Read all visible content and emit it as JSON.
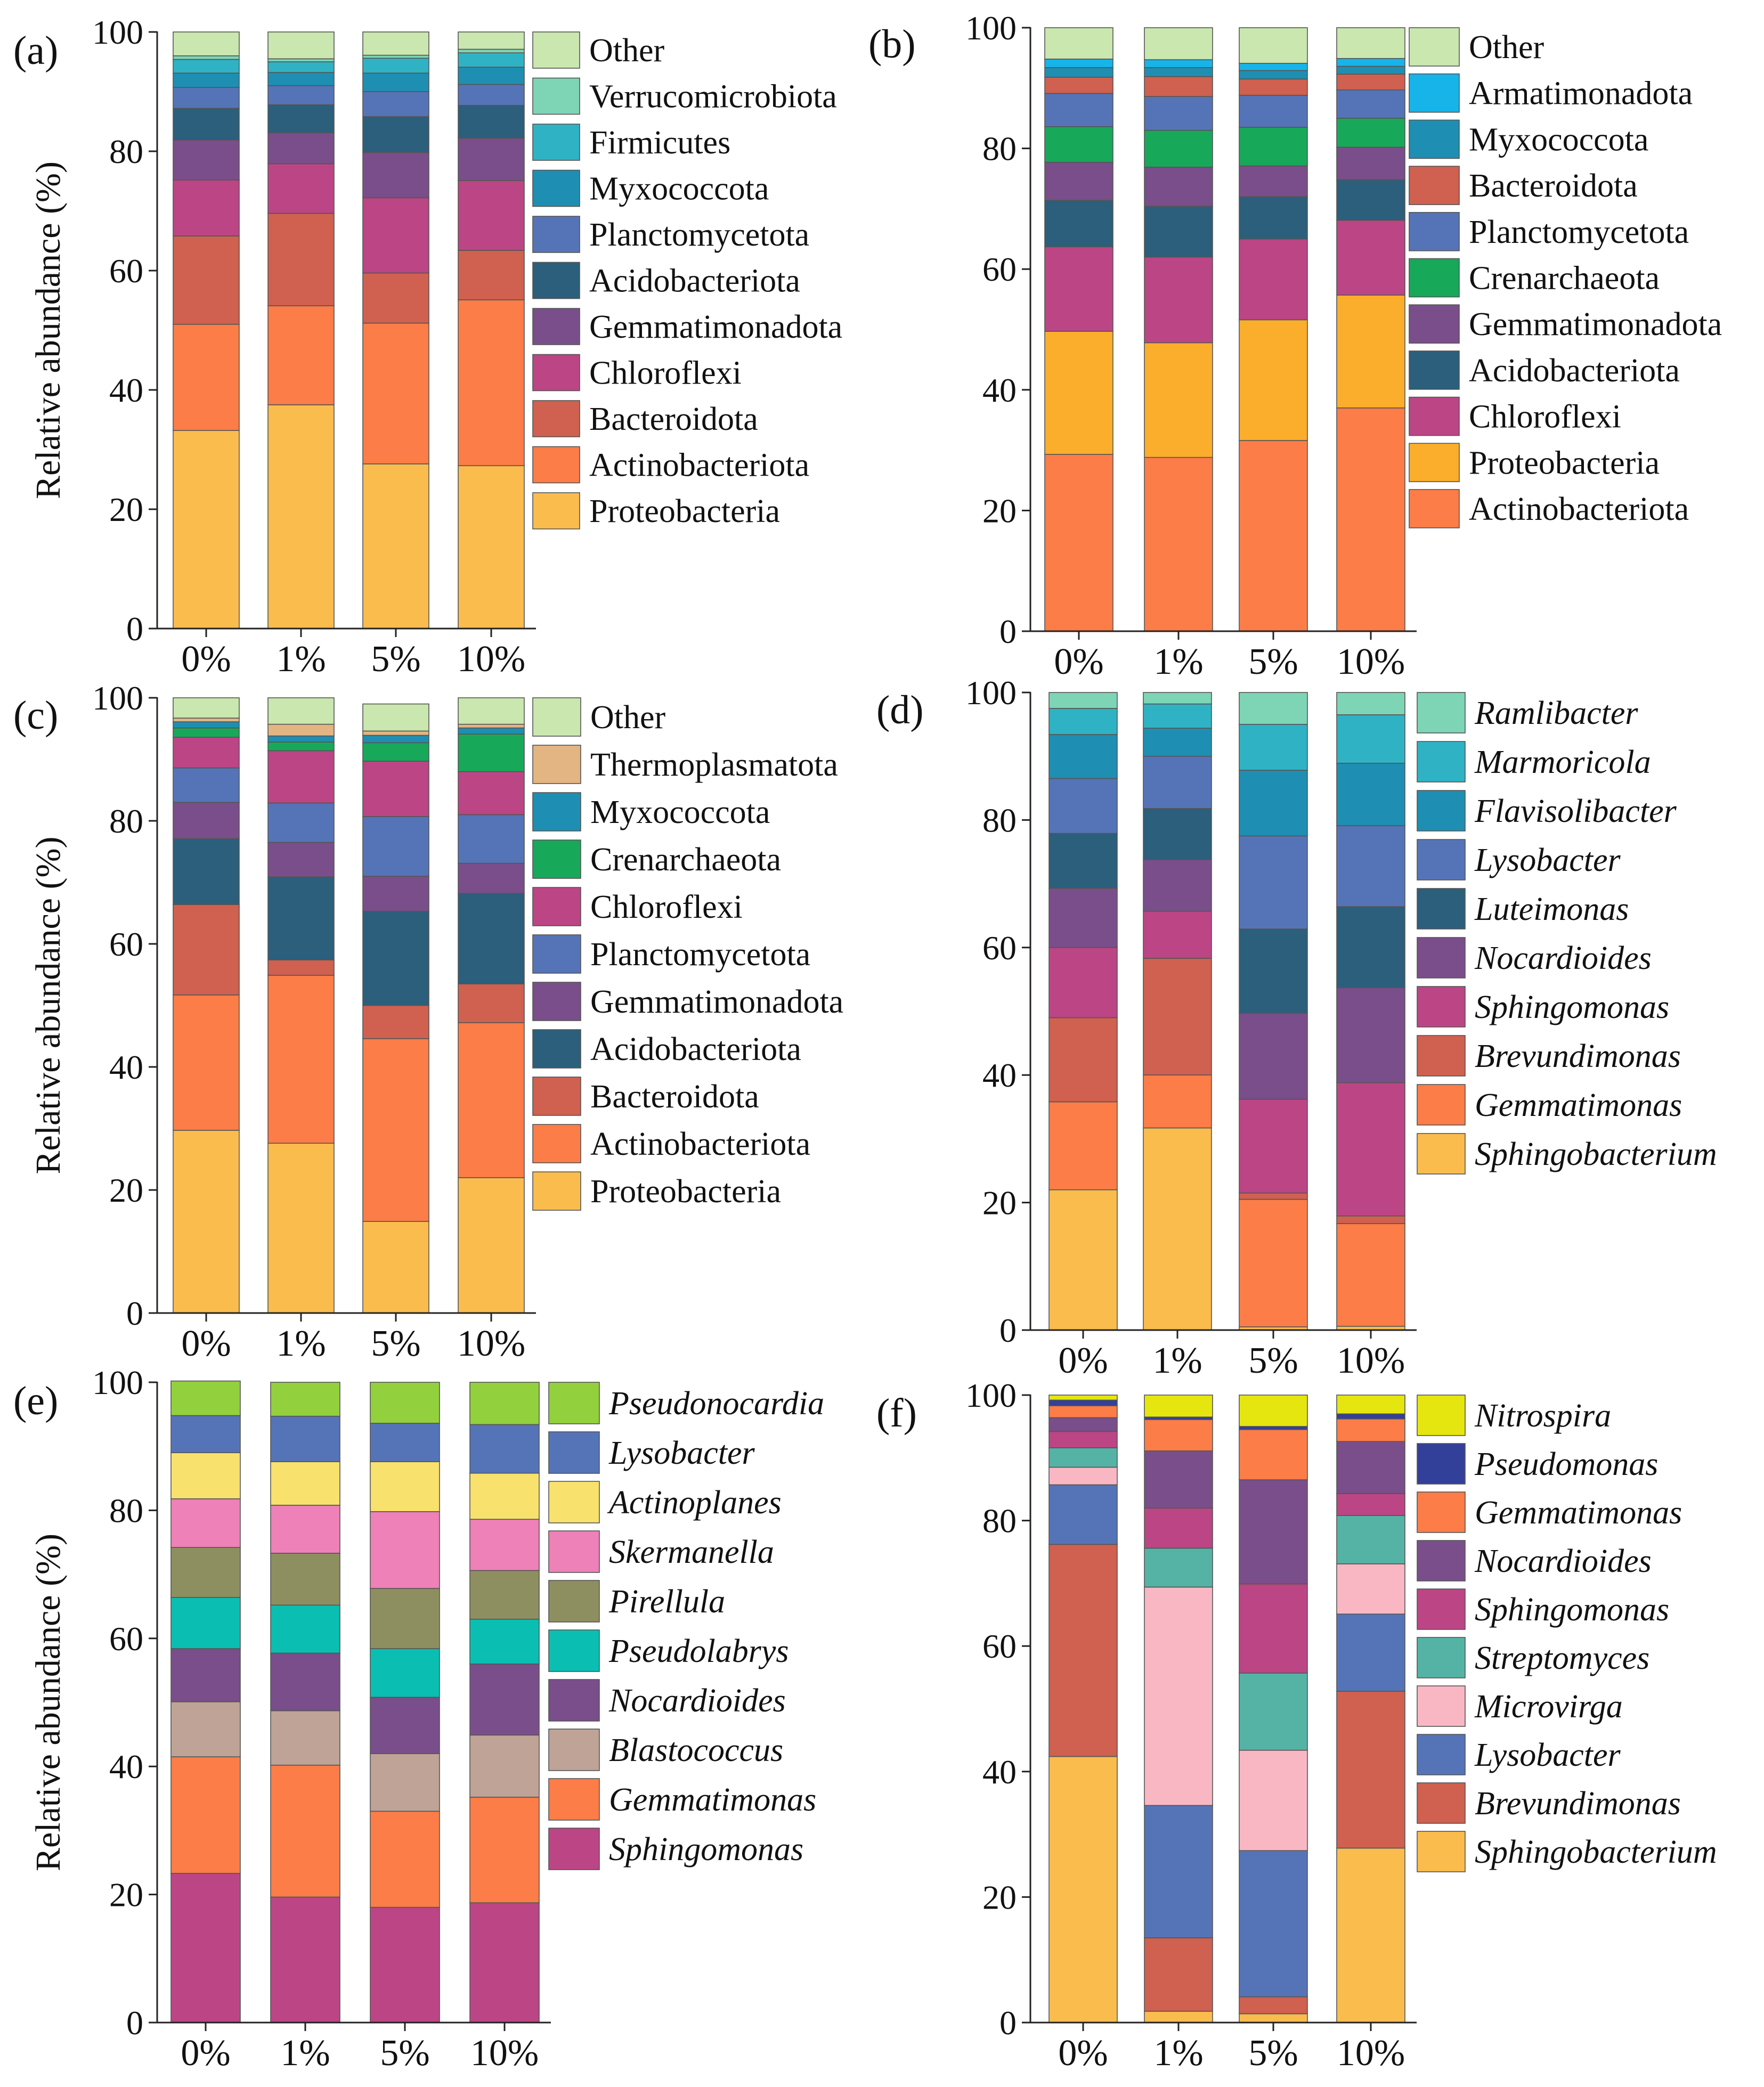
{
  "figure": {
    "ylabel": "Relative  abundance (%)"
  },
  "chart_data": [
    {
      "panel": "(a)",
      "type": "stacked-bar",
      "categories": [
        "0%",
        "1%",
        "5%",
        "10%"
      ],
      "ylim": [
        0,
        100
      ],
      "yticks": [
        0,
        20,
        40,
        60,
        80,
        100
      ],
      "ylabel": "Relative  abundance (%)",
      "series": [
        {
          "name": "Proteobacteria",
          "italic": false,
          "color": "#FBBC4E",
          "values": [
            33.2,
            37.5,
            27.6,
            27.3
          ]
        },
        {
          "name": "Actinobacteriota",
          "italic": false,
          "color": "#FC7D47",
          "values": [
            17.8,
            16.6,
            23.6,
            27.8
          ]
        },
        {
          "name": "Bacteroidota",
          "italic": false,
          "color": "#D0604F",
          "values": [
            14.8,
            15.5,
            8.4,
            8.3
          ]
        },
        {
          "name": "Chloroflexi",
          "italic": false,
          "color": "#BC4585",
          "values": [
            9.4,
            8.3,
            12.6,
            11.7
          ]
        },
        {
          "name": "Gemmatimonadota",
          "italic": false,
          "color": "#7A4E8A",
          "values": [
            6.7,
            5.2,
            7.6,
            7.1
          ]
        },
        {
          "name": "Acidobacteriota",
          "italic": false,
          "color": "#2B5F7C",
          "values": [
            5.3,
            4.7,
            6.0,
            5.5
          ]
        },
        {
          "name": "Planctomycetota",
          "italic": false,
          "color": "#5574B8",
          "values": [
            3.5,
            3.2,
            4.2,
            3.5
          ]
        },
        {
          "name": "Myxococcota",
          "italic": false,
          "color": "#1E8FB2",
          "values": [
            2.4,
            2.2,
            3.1,
            2.9
          ]
        },
        {
          "name": "Firmicutes",
          "italic": false,
          "color": "#2FB2C4",
          "values": [
            2.3,
            1.8,
            2.5,
            2.4
          ]
        },
        {
          "name": "Verrucomicrobiota",
          "italic": false,
          "color": "#7DD5B5",
          "values": [
            0.6,
            0.5,
            0.5,
            0.6
          ]
        },
        {
          "name": "Other",
          "italic": false,
          "color": "#C9E7AE",
          "values": [
            4.0,
            4.5,
            3.9,
            2.9
          ]
        }
      ]
    },
    {
      "panel": "(b)",
      "type": "stacked-bar",
      "categories": [
        "0%",
        "1%",
        "5%",
        "10%"
      ],
      "ylim": [
        0,
        100
      ],
      "yticks": [
        0,
        20,
        40,
        60,
        80,
        100
      ],
      "series": [
        {
          "name": "Actinobacteriota",
          "italic": false,
          "color": "#FC7D47",
          "values": [
            29.3,
            28.8,
            31.6,
            37.0
          ]
        },
        {
          "name": "Proteobacteria",
          "italic": false,
          "color": "#FBAE2C",
          "values": [
            20.4,
            19.0,
            20.0,
            18.7
          ]
        },
        {
          "name": "Chloroflexi",
          "italic": false,
          "color": "#BC4585",
          "values": [
            14.0,
            14.2,
            13.4,
            12.4
          ]
        },
        {
          "name": "Acidobacteriota",
          "italic": false,
          "color": "#2B5F7C",
          "values": [
            7.7,
            8.4,
            7.0,
            6.7
          ]
        },
        {
          "name": "Gemmatimonadota",
          "italic": false,
          "color": "#7A4E8A",
          "values": [
            6.3,
            6.5,
            5.1,
            5.4
          ]
        },
        {
          "name": "Crenarchaeota",
          "italic": false,
          "color": "#18A85A",
          "values": [
            5.9,
            6.1,
            6.4,
            4.8
          ]
        },
        {
          "name": "Planctomycetota",
          "italic": false,
          "color": "#5574B8",
          "values": [
            5.5,
            5.6,
            5.3,
            4.7
          ]
        },
        {
          "name": "Bacteroidota",
          "italic": false,
          "color": "#D0604F",
          "values": [
            2.7,
            3.3,
            2.7,
            2.6
          ]
        },
        {
          "name": "Myxococcota",
          "italic": false,
          "color": "#1E8FB2",
          "values": [
            1.6,
            1.5,
            1.4,
            1.3
          ]
        },
        {
          "name": "Armatimonadota",
          "italic": false,
          "color": "#17B4EA",
          "values": [
            1.4,
            1.3,
            1.2,
            1.3
          ]
        },
        {
          "name": "Other",
          "italic": false,
          "color": "#C9E7AE",
          "values": [
            5.2,
            5.3,
            5.9,
            5.1
          ]
        }
      ]
    },
    {
      "panel": "(c)",
      "type": "stacked-bar",
      "categories": [
        "0%",
        "1%",
        "5%",
        "10%"
      ],
      "ylim": [
        0,
        100
      ],
      "yticks": [
        0,
        20,
        40,
        60,
        80,
        100
      ],
      "ylabel": "Relative  abundance (%)",
      "series": [
        {
          "name": "Proteobacteria",
          "italic": false,
          "color": "#FBBC4E",
          "values": [
            29.7,
            27.6,
            14.9,
            22.0
          ]
        },
        {
          "name": "Actinobacteriota",
          "italic": false,
          "color": "#FC7D47",
          "values": [
            22.0,
            27.3,
            29.7,
            25.2
          ]
        },
        {
          "name": "Bacteroidota",
          "italic": false,
          "color": "#D0604F",
          "values": [
            14.7,
            2.5,
            5.4,
            6.3
          ]
        },
        {
          "name": "Acidobacteriota",
          "italic": false,
          "color": "#2B5F7C",
          "values": [
            10.7,
            13.5,
            15.3,
            14.7
          ]
        },
        {
          "name": "Gemmatimonadota",
          "italic": false,
          "color": "#7A4E8A",
          "values": [
            5.9,
            5.6,
            5.7,
            4.9
          ]
        },
        {
          "name": "Planctomycetota",
          "italic": false,
          "color": "#5574B8",
          "values": [
            5.6,
            6.4,
            9.7,
            7.9
          ]
        },
        {
          "name": "Chloroflexi",
          "italic": false,
          "color": "#BC4585",
          "values": [
            5.0,
            8.5,
            9.0,
            7.0
          ]
        },
        {
          "name": "Crenarchaeota",
          "italic": false,
          "color": "#18A85A",
          "values": [
            1.5,
            1.4,
            3.0,
            6.1
          ]
        },
        {
          "name": "Myxococcota",
          "italic": false,
          "color": "#1E8FB2",
          "values": [
            1.0,
            1.0,
            1.2,
            1.0
          ]
        },
        {
          "name": "Thermoplasmatota",
          "italic": false,
          "color": "#E2B582",
          "values": [
            0.6,
            1.9,
            0.7,
            0.6
          ]
        },
        {
          "name": "Other",
          "italic": false,
          "color": "#C9E7AE",
          "values": [
            3.3,
            4.3,
            4.4,
            4.3
          ]
        }
      ]
    },
    {
      "panel": "(d)",
      "type": "stacked-bar",
      "categories": [
        "0%",
        "1%",
        "5%",
        "10%"
      ],
      "ylim": [
        0,
        100
      ],
      "yticks": [
        0,
        20,
        40,
        60,
        80,
        100
      ],
      "series": [
        {
          "name": "Sphingobacterium",
          "italic": true,
          "color": "#FBBC4E",
          "values": [
            22.0,
            31.7,
            0.5,
            0.6
          ]
        },
        {
          "name": "Gemmatimonas",
          "italic": true,
          "color": "#FC7D47",
          "values": [
            13.8,
            8.3,
            20.0,
            16.1
          ]
        },
        {
          "name": "Brevundimonas",
          "italic": true,
          "color": "#D0604F",
          "values": [
            13.2,
            18.3,
            1.0,
            1.2
          ]
        },
        {
          "name": "Sphingomonas",
          "italic": true,
          "color": "#BC4585",
          "values": [
            11.0,
            7.4,
            14.7,
            20.9
          ]
        },
        {
          "name": "Nocardioides",
          "italic": true,
          "color": "#7A4E8A",
          "values": [
            9.3,
            8.1,
            13.5,
            14.9
          ]
        },
        {
          "name": "Luteimonas",
          "italic": true,
          "color": "#2B5F7C",
          "values": [
            8.6,
            8.0,
            13.2,
            12.7
          ]
        },
        {
          "name": "Lysobacter",
          "italic": true,
          "color": "#5574B8",
          "values": [
            8.6,
            8.2,
            14.6,
            12.7
          ]
        },
        {
          "name": "Flavisolibacter",
          "italic": true,
          "color": "#1E8FB2",
          "values": [
            6.9,
            4.4,
            10.3,
            9.8
          ]
        },
        {
          "name": "Marmoricola",
          "italic": true,
          "color": "#2FB2C4",
          "values": [
            4.1,
            3.8,
            7.2,
            7.6
          ]
        },
        {
          "name": "Ramlibacter",
          "italic": true,
          "color": "#7DD5B5",
          "values": [
            2.5,
            1.8,
            5.0,
            3.5
          ]
        }
      ]
    },
    {
      "panel": "(e)",
      "type": "stacked-bar",
      "categories": [
        "0%",
        "1%",
        "5%",
        "10%"
      ],
      "ylim": [
        0,
        100
      ],
      "yticks": [
        0,
        20,
        40,
        60,
        80,
        100
      ],
      "ylabel": "Relative  abundance (%)",
      "series": [
        {
          "name": "Sphingomonas",
          "italic": true,
          "color": "#BC4585",
          "values": [
            23.3,
            19.6,
            18.0,
            18.7
          ]
        },
        {
          "name": "Gemmatimonas",
          "italic": true,
          "color": "#FC7D47",
          "values": [
            18.2,
            20.6,
            15.0,
            16.5
          ]
        },
        {
          "name": "Blastococcus",
          "italic": true,
          "color": "#BEA396",
          "values": [
            8.6,
            8.5,
            9.0,
            9.7
          ]
        },
        {
          "name": "Nocardioides",
          "italic": true,
          "color": "#7A4E8A",
          "values": [
            8.3,
            9.0,
            8.8,
            11.1
          ]
        },
        {
          "name": "Pseudolabrys",
          "italic": true,
          "color": "#0ABFB1",
          "values": [
            8.0,
            7.5,
            7.6,
            7.0
          ]
        },
        {
          "name": "Pirellula",
          "italic": true,
          "color": "#8E8F60",
          "values": [
            7.8,
            8.1,
            9.4,
            7.6
          ]
        },
        {
          "name": "Skermanella",
          "italic": true,
          "color": "#EE81B7",
          "values": [
            7.6,
            7.5,
            12.0,
            8.0
          ]
        },
        {
          "name": "Actinoplanes",
          "italic": true,
          "color": "#F8E16D",
          "values": [
            7.2,
            6.8,
            7.8,
            7.2
          ]
        },
        {
          "name": "Lysobacter",
          "italic": true,
          "color": "#5574B8",
          "values": [
            5.8,
            7.1,
            6.0,
            7.6
          ]
        },
        {
          "name": "Pseudonocardia",
          "italic": true,
          "color": "#93D03D",
          "values": [
            5.4,
            5.3,
            6.4,
            6.6
          ]
        }
      ]
    },
    {
      "panel": "(f)",
      "type": "stacked-bar",
      "categories": [
        "0%",
        "1%",
        "5%",
        "10%"
      ],
      "ylim": [
        0,
        100
      ],
      "yticks": [
        0,
        20,
        40,
        60,
        80,
        100
      ],
      "series": [
        {
          "name": "Sphingobacterium",
          "italic": true,
          "color": "#FBBC4E",
          "values": [
            42.4,
            1.8,
            1.4,
            27.8
          ]
        },
        {
          "name": "Brevundimonas",
          "italic": true,
          "color": "#D0604F",
          "values": [
            33.8,
            11.7,
            2.7,
            25.0
          ]
        },
        {
          "name": "Lysobacter",
          "italic": true,
          "color": "#5574B8",
          "values": [
            9.5,
            21.1,
            23.3,
            12.3
          ]
        },
        {
          "name": "Microvirga",
          "italic": true,
          "color": "#F9B7C4",
          "values": [
            2.8,
            34.8,
            16.0,
            8.0
          ]
        },
        {
          "name": "Streptomyces",
          "italic": true,
          "color": "#55B3A6",
          "values": [
            3.1,
            6.2,
            12.3,
            7.7
          ]
        },
        {
          "name": "Sphingomonas",
          "italic": true,
          "color": "#BC4585",
          "values": [
            2.6,
            6.4,
            14.2,
            3.5
          ]
        },
        {
          "name": "Nocardioides",
          "italic": true,
          "color": "#7A4E8A",
          "values": [
            2.2,
            9.1,
            16.6,
            8.3
          ]
        },
        {
          "name": "Gemmatimonas",
          "italic": true,
          "color": "#FC7D47",
          "values": [
            1.9,
            5.0,
            8.0,
            3.6
          ]
        },
        {
          "name": "Pseudomonas",
          "italic": true,
          "color": "#33409A",
          "values": [
            0.9,
            0.4,
            0.5,
            0.8
          ]
        },
        {
          "name": "Nitrospira",
          "italic": true,
          "color": "#E5E610",
          "values": [
            0.8,
            3.5,
            5.0,
            3.0
          ]
        }
      ]
    }
  ]
}
